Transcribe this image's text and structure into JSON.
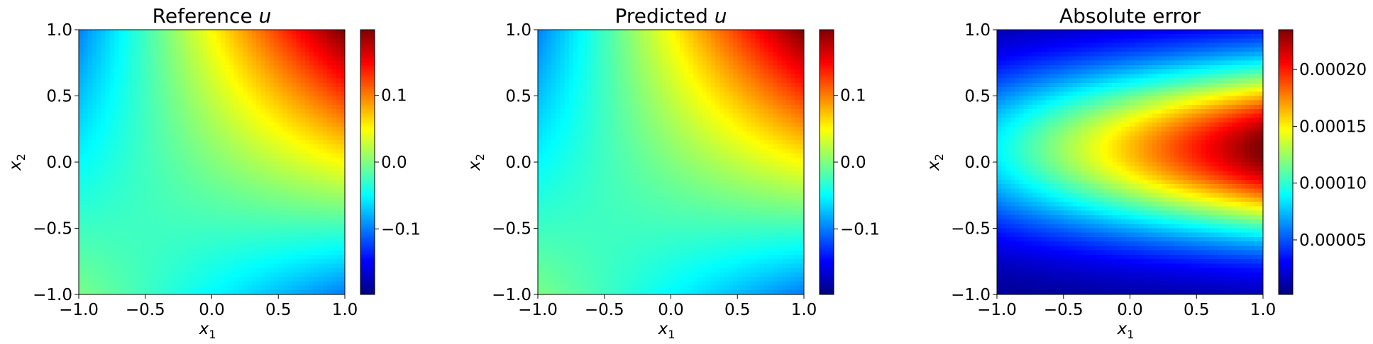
{
  "chart_data": [
    {
      "type": "heatmap",
      "title_prefix": "Reference ",
      "title_var": "u",
      "xlabel": {
        "base": "x",
        "sub": "1"
      },
      "ylabel": {
        "base": "x",
        "sub": "2"
      },
      "xlim": [
        -1.0,
        1.0
      ],
      "ylim": [
        -1.0,
        1.0
      ],
      "xticks": [
        -1.0,
        -0.5,
        0.0,
        0.5,
        1.0
      ],
      "xtick_labels": [
        "−1.0",
        "−0.5",
        "0.0",
        "0.5",
        "1.0"
      ],
      "yticks": [
        -1.0,
        -0.5,
        0.0,
        0.5,
        1.0
      ],
      "ytick_labels": [
        "−1.0",
        "−0.5",
        "0.0",
        "0.5",
        "1.0"
      ],
      "colormap": "jet",
      "field": "0.05*(x1+x2) + 0.1*x1*x2 + 0.002*x1*x1*x2",
      "colorbar": {
        "range": [
          -0.198,
          0.198
        ],
        "ticks": [
          -0.1,
          0.0,
          0.1
        ],
        "tick_labels": [
          "−0.1",
          "0.0",
          "0.1"
        ]
      }
    },
    {
      "type": "heatmap",
      "title_prefix": "Predicted ",
      "title_var": "u",
      "xlabel": {
        "base": "x",
        "sub": "1"
      },
      "ylabel": {
        "base": "x",
        "sub": "2"
      },
      "xlim": [
        -1.0,
        1.0
      ],
      "ylim": [
        -1.0,
        1.0
      ],
      "xticks": [
        -1.0,
        -0.5,
        0.0,
        0.5,
        1.0
      ],
      "xtick_labels": [
        "−1.0",
        "−0.5",
        "0.0",
        "0.5",
        "1.0"
      ],
      "yticks": [
        -1.0,
        -0.5,
        0.0,
        0.5,
        1.0
      ],
      "ytick_labels": [
        "−1.0",
        "−0.5",
        "0.0",
        "0.5",
        "1.0"
      ],
      "colormap": "jet",
      "field": "0.05*(x1+x2) + 0.1*x1*x2 + 0.002*x1*x1*x2",
      "colorbar": {
        "range": [
          -0.198,
          0.198
        ],
        "ticks": [
          -0.1,
          0.0,
          0.1
        ],
        "tick_labels": [
          "−0.1",
          "0.0",
          "0.1"
        ]
      }
    },
    {
      "type": "heatmap",
      "title_prefix": "Absolute error",
      "title_var": "",
      "xlabel": {
        "base": "x",
        "sub": "1"
      },
      "ylabel": {
        "base": "x",
        "sub": "2"
      },
      "xlim": [
        -1.0,
        1.0
      ],
      "ylim": [
        -1.0,
        1.0
      ],
      "xticks": [
        -1.0,
        -0.5,
        0.0,
        0.5,
        1.0
      ],
      "xtick_labels": [
        "−1.0",
        "−0.5",
        "0.0",
        "0.5",
        "1.0"
      ],
      "yticks": [
        -1.0,
        -0.5,
        0.0,
        0.5,
        1.0
      ],
      "ytick_labels": [
        "−1.0",
        "−0.5",
        "0.0",
        "0.5",
        "1.0"
      ],
      "colormap": "jet",
      "field": "absolute error between reference and predicted u; max ~0.000235 near (1.0, 0.1), min ~0.000002 near (-1.0, 1.0)",
      "colorbar": {
        "range": [
          2e-06,
          0.000235
        ],
        "ticks": [
          5e-05,
          0.0001,
          0.00015,
          0.0002
        ],
        "tick_labels": [
          "0.00005",
          "0.00010",
          "0.00015",
          "0.00020"
        ]
      }
    }
  ]
}
